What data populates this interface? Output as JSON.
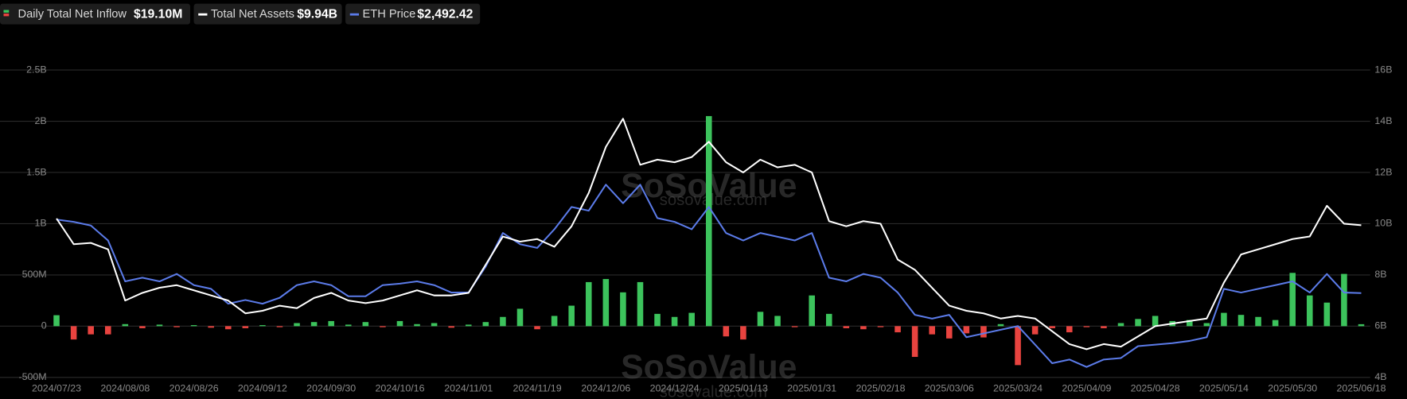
{
  "chart_data": {
    "type": "combo",
    "watermark": "SoSoValue",
    "watermark_sub": "sosovalue.com",
    "categories": [
      "2024/07/23",
      null,
      null,
      null,
      "2024/08/08",
      null,
      null,
      null,
      "2024/08/26",
      null,
      null,
      null,
      "2024/09/12",
      null,
      null,
      null,
      "2024/09/30",
      null,
      null,
      null,
      "2024/10/16",
      null,
      null,
      null,
      "2024/11/01",
      null,
      null,
      null,
      "2024/11/19",
      null,
      null,
      null,
      "2024/12/06",
      null,
      null,
      null,
      "2024/12/24",
      null,
      null,
      null,
      "2025/01/13",
      null,
      null,
      null,
      "2025/01/31",
      null,
      null,
      null,
      "2025/02/18",
      null,
      null,
      null,
      "2025/03/06",
      null,
      null,
      null,
      "2025/03/24",
      null,
      null,
      null,
      "2025/04/09",
      null,
      null,
      null,
      "2025/04/28",
      null,
      null,
      null,
      "2025/05/14",
      null,
      null,
      null,
      "2025/05/30",
      null,
      null,
      null,
      "2025/06/18"
    ],
    "ylim": [
      -500000000,
      2500000000
    ],
    "yticks": [
      {
        "value": -500000000,
        "label": "-500M"
      },
      0,
      {
        "value": 500000000,
        "label": "500M"
      },
      {
        "value": 1000000000,
        "label": "1B"
      },
      {
        "value": 1500000000,
        "label": "1.5B"
      },
      {
        "value": 2000000000,
        "label": "2B"
      },
      {
        "value": 2500000000,
        "label": "2.5B"
      }
    ],
    "y2lim": [
      4000000000,
      16000000000
    ],
    "y2ticks": [
      {
        "value": 4000000000,
        "label": "4B"
      },
      {
        "value": 6000000000,
        "label": "6B"
      },
      {
        "value": 8000000000,
        "label": "8B"
      },
      {
        "value": 10000000000,
        "label": "10B"
      },
      {
        "value": 12000000000,
        "label": "12B"
      },
      {
        "value": 14000000000,
        "label": "14B"
      },
      {
        "value": 16000000000,
        "label": "16B"
      }
    ],
    "y3lim": [
      1360,
      5490
    ],
    "grid": true,
    "series": [
      {
        "name": "Daily Total Net Inflow",
        "latest_label": "$19.10M",
        "kind": "bar",
        "color": "#3cc35c",
        "negative_color": "#e8433f",
        "values": [
          107000000,
          -130000000,
          -80000000,
          -80000000,
          20000000,
          -20000000,
          15000000,
          -10000000,
          10000000,
          -15000000,
          -30000000,
          -20000000,
          10000000,
          -10000000,
          30000000,
          40000000,
          50000000,
          15000000,
          40000000,
          -10000000,
          50000000,
          20000000,
          30000000,
          -15000000,
          15000000,
          40000000,
          90000000,
          170000000,
          -30000000,
          100000000,
          200000000,
          430000000,
          460000000,
          330000000,
          430000000,
          120000000,
          90000000,
          130000000,
          2050000000,
          -100000000,
          -130000000,
          140000000,
          100000000,
          -10000000,
          300000000,
          120000000,
          -20000000,
          -30000000,
          -10000000,
          -60000000,
          -300000000,
          -80000000,
          -120000000,
          -70000000,
          -110000000,
          20000000,
          -380000000,
          -80000000,
          -20000000,
          -60000000,
          -10000000,
          -20000000,
          30000000,
          70000000,
          100000000,
          50000000,
          60000000,
          30000000,
          130000000,
          110000000,
          90000000,
          60000000,
          520000000,
          300000000,
          230000000,
          510000000,
          19100000
        ]
      },
      {
        "name": "Total Net Assets",
        "latest_label": "$9.94B",
        "kind": "line",
        "axis": "y2",
        "color": "#ffffff",
        "values": [
          10200000000,
          9200000000,
          9250000000,
          9000000000,
          7000000000,
          7300000000,
          7500000000,
          7600000000,
          7400000000,
          7200000000,
          7000000000,
          6500000000,
          6600000000,
          6800000000,
          6700000000,
          7100000000,
          7300000000,
          7000000000,
          6900000000,
          7000000000,
          7200000000,
          7400000000,
          7200000000,
          7200000000,
          7300000000,
          8400000000,
          9500000000,
          9300000000,
          9400000000,
          9100000000,
          9900000000,
          11200000000,
          13000000000,
          14100000000,
          12300000000,
          12500000000,
          12400000000,
          12600000000,
          13200000000,
          12400000000,
          12000000000,
          12500000000,
          12200000000,
          12300000000,
          12000000000,
          10100000000,
          9900000000,
          10100000000,
          10000000000,
          8600000000,
          8200000000,
          7500000000,
          6800000000,
          6600000000,
          6500000000,
          6300000000,
          6400000000,
          6300000000,
          5800000000,
          5300000000,
          5100000000,
          5300000000,
          5200000000,
          5600000000,
          6000000000,
          6100000000,
          6200000000,
          6300000000,
          7700000000,
          8800000000,
          9000000000,
          9200000000,
          9400000000,
          9500000000,
          10700000000,
          10000000000,
          9940000000
        ]
      },
      {
        "name": "ETH Price",
        "latest_label": "$2,492.42",
        "kind": "line",
        "axis": "y3",
        "color": "#5b7be9",
        "values": [
          3480,
          3450,
          3400,
          3200,
          2650,
          2700,
          2650,
          2750,
          2600,
          2550,
          2350,
          2400,
          2350,
          2430,
          2600,
          2650,
          2600,
          2450,
          2450,
          2600,
          2620,
          2650,
          2600,
          2500,
          2500,
          2850,
          3300,
          3150,
          3100,
          3350,
          3650,
          3600,
          3950,
          3700,
          3950,
          3500,
          3450,
          3350,
          3650,
          3300,
          3200,
          3300,
          3250,
          3200,
          3300,
          2700,
          2650,
          2750,
          2700,
          2500,
          2200,
          2150,
          2200,
          1900,
          1950,
          2000,
          2050,
          1800,
          1550,
          1600,
          1500,
          1600,
          1620,
          1780,
          1800,
          1820,
          1850,
          1900,
          2550,
          2500,
          2550,
          2600,
          2650,
          2500,
          2750,
          2500,
          2492.42
        ]
      }
    ]
  }
}
